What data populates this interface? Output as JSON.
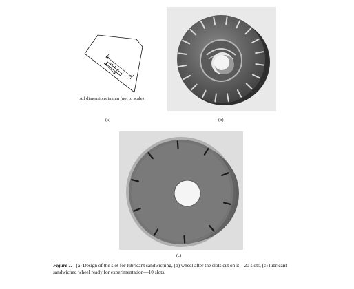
{
  "panels": {
    "a": {
      "label": "(a)",
      "dimension_note": "All dimensions in mm (not to scale)"
    },
    "b": {
      "label": "(b)"
    },
    "c": {
      "label": "(c)"
    }
  },
  "caption": {
    "figure_label": "Figure 1.",
    "text": "(a) Design of the slot for lubricant sandwiching, (b) wheel after the slots cut on it—20 slots, (c) lubricant sandwiched wheel ready for experimentation—10 slots."
  },
  "colors": {
    "ink": "#111111",
    "photo_bg_b": "#e9e9e9",
    "photo_bg_c": "#dedede",
    "wheel_dark": "#3e3e3e",
    "wheel_mid": "#6f6f6f",
    "wheel_light": "#8a8a8a"
  },
  "icons": {
    "panel_a": "slot-design-schematic",
    "panel_b": "grinding-wheel-20-slots-photo",
    "panel_c": "grinding-wheel-10-slots-photo"
  }
}
